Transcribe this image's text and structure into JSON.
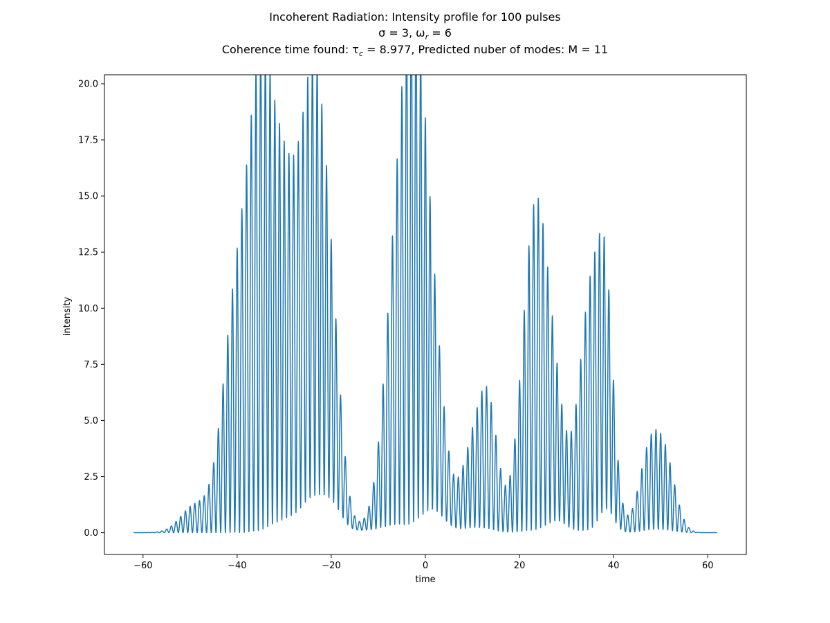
{
  "chart_data": {
    "type": "line",
    "title_lines": [
      "Incoherent Radiation: Intensity profile for 100 pulses",
      "σ = 3, ω_r = 6",
      "Coherence time found: τ_c = 8.977, Predicted nuber of modes: M = 11"
    ],
    "title": {
      "line1": "Incoherent Radiation: Intensity profile for 100 pulses",
      "line2_pre": "σ = 3, ω",
      "line2_sub": "r",
      "line2_post": " = 6",
      "line3_pre": "Coherence time found: τ",
      "line3_sub": "c",
      "line3_post": " = 8.977, Predicted nuber of modes: M = 11"
    },
    "xlabel": "time",
    "ylabel": "intensity",
    "xlim": [
      -68.2,
      68.2
    ],
    "ylim": [
      -0.97,
      20.4
    ],
    "x_range": [
      -62,
      62
    ],
    "x_ticks": [
      -60,
      -40,
      -20,
      0,
      20,
      40,
      60
    ],
    "x_tick_labels": [
      "−60",
      "−40",
      "−20",
      "0",
      "20",
      "40",
      "60"
    ],
    "y_ticks": [
      0.0,
      2.5,
      5.0,
      7.5,
      10.0,
      12.5,
      15.0,
      17.5,
      20.0
    ],
    "y_tick_labels": [
      "0.0",
      "2.5",
      "5.0",
      "7.5",
      "10.0",
      "12.5",
      "15.0",
      "17.5",
      "20.0"
    ],
    "grid": false,
    "line_color": "#1f77b4",
    "oscillation_period": 1.0,
    "envelope_peaks": [
      {
        "t": -49,
        "min": 0.0,
        "max": 1.2,
        "width": 3.0
      },
      {
        "t": -40,
        "min": 0.0,
        "max": 10.5,
        "width": 3.0
      },
      {
        "t": -35,
        "min": 0.0,
        "max": 15.6,
        "width": 2.5
      },
      {
        "t": -30,
        "min": 0.5,
        "max": 14.0,
        "width": 3.0
      },
      {
        "t": -23.5,
        "min": 1.5,
        "max": 19.3,
        "width": 2.8
      },
      {
        "t": -19.5,
        "min": 0.8,
        "max": 4.3,
        "width": 2.0
      },
      {
        "t": -12,
        "min": 0.1,
        "max": 0.3,
        "width": 3.0
      },
      {
        "t": -6.5,
        "min": 0.3,
        "max": 9.5,
        "width": 2.5
      },
      {
        "t": -2.5,
        "min": 0.1,
        "max": 19.2,
        "width": 2.5
      },
      {
        "t": 1.5,
        "min": 1.0,
        "max": 7.8,
        "width": 2.5
      },
      {
        "t": 10,
        "min": 0.2,
        "max": 3.6,
        "width": 2.5
      },
      {
        "t": 13.5,
        "min": 0.1,
        "max": 4.9,
        "width": 2.0
      },
      {
        "t": 23.5,
        "min": 0.1,
        "max": 14.7,
        "width": 2.8
      },
      {
        "t": 28,
        "min": 0.5,
        "max": 3.2,
        "width": 2.0
      },
      {
        "t": 35.5,
        "min": 0.1,
        "max": 11.2,
        "width": 2.8
      },
      {
        "t": 38.5,
        "min": 1.0,
        "max": 6.0,
        "width": 1.5
      },
      {
        "t": 47.5,
        "min": 0.1,
        "max": 3.3,
        "width": 2.2
      },
      {
        "t": 51,
        "min": 0.1,
        "max": 3.0,
        "width": 2.2
      }
    ]
  }
}
